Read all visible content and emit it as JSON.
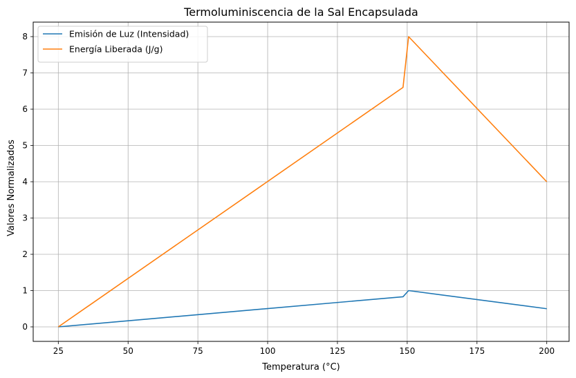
{
  "chart_data": {
    "type": "line",
    "title": "Termoluminiscencia de la Sal Encapsulada",
    "xlabel": "Temperatura (°C)",
    "ylabel": "Valores Normalizados",
    "xlim": [
      16,
      208
    ],
    "ylim": [
      -0.4,
      8.4
    ],
    "xticks": [
      25,
      50,
      75,
      100,
      125,
      150,
      175,
      200
    ],
    "yticks": [
      0,
      1,
      2,
      3,
      4,
      5,
      6,
      7,
      8
    ],
    "grid": true,
    "legend_position": "top-left",
    "series": [
      {
        "name": "Emisión de Luz (Intensidad)",
        "color": "#1f77b4",
        "x": [
          25,
          148.5,
          150.5,
          200
        ],
        "y": [
          0,
          0.83,
          1.0,
          0.5
        ]
      },
      {
        "name": "Energía Liberada (J/g)",
        "color": "#ff7f0e",
        "x": [
          25,
          148.5,
          150.5,
          200
        ],
        "y": [
          0,
          6.6,
          8.0,
          4.0
        ]
      }
    ]
  }
}
